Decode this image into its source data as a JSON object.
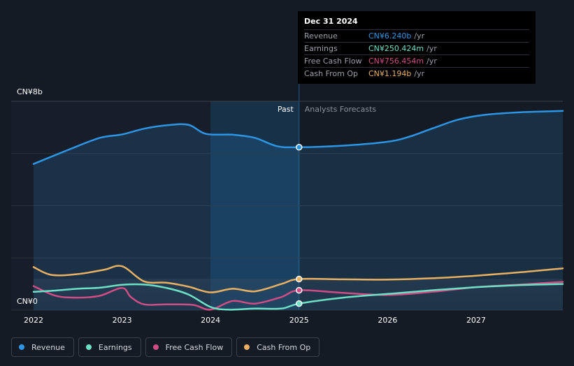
{
  "colors": {
    "revenue": "#2d95e3",
    "earnings": "#6ee0c6",
    "free_cash_flow": "#cf4d84",
    "cash_from_op": "#e8b062",
    "background": "#151b24",
    "past_band": "#1b4d78"
  },
  "tooltip": {
    "date": "Dec 31 2024",
    "rows": [
      {
        "label": "Revenue",
        "value": "CN¥6.240b",
        "unit": "/yr",
        "color": "#2d95e3"
      },
      {
        "label": "Earnings",
        "value": "CN¥250.424m",
        "unit": "/yr",
        "color": "#6ee0c6"
      },
      {
        "label": "Free Cash Flow",
        "value": "CN¥756.454m",
        "unit": "/yr",
        "color": "#cf4d84"
      },
      {
        "label": "Cash From Op",
        "value": "CN¥1.194b",
        "unit": "/yr",
        "color": "#e8b062"
      }
    ]
  },
  "legend": [
    {
      "label": "Revenue",
      "color": "#2d95e3"
    },
    {
      "label": "Earnings",
      "color": "#6ee0c6"
    },
    {
      "label": "Free Cash Flow",
      "color": "#cf4d84"
    },
    {
      "label": "Cash From Op",
      "color": "#e8b062"
    }
  ],
  "chart_data": {
    "type": "line",
    "title": "",
    "units": "CN¥ billions",
    "y_top_label": "CN¥8b",
    "y_bottom_label": "CN¥0",
    "ylim": [
      0,
      8
    ],
    "xlim": [
      2022.0,
      2027.98
    ],
    "x_ticks": [
      2022,
      2023,
      2024,
      2025,
      2026,
      2027
    ],
    "x_tick_labels": [
      "2022",
      "2023",
      "2024",
      "2025",
      "2026",
      "2027"
    ],
    "past_label": "Past",
    "forecast_label": "Analysts Forecasts",
    "past_highlight_range": [
      2024.0,
      2025.0
    ],
    "divider_x": 2025.0,
    "series": [
      {
        "name": "Revenue",
        "key": "revenue",
        "points": [
          [
            2022.0,
            5.6
          ],
          [
            2022.4,
            6.15
          ],
          [
            2022.75,
            6.6
          ],
          [
            2023.0,
            6.73
          ],
          [
            2023.25,
            6.95
          ],
          [
            2023.5,
            7.08
          ],
          [
            2023.75,
            7.1
          ],
          [
            2023.95,
            6.75
          ],
          [
            2024.25,
            6.72
          ],
          [
            2024.5,
            6.6
          ],
          [
            2024.75,
            6.28
          ],
          [
            2025.0,
            6.24
          ],
          [
            2025.5,
            6.3
          ],
          [
            2026.0,
            6.45
          ],
          [
            2026.25,
            6.65
          ],
          [
            2026.5,
            6.95
          ],
          [
            2026.8,
            7.3
          ],
          [
            2027.1,
            7.48
          ],
          [
            2027.5,
            7.58
          ],
          [
            2027.98,
            7.63
          ]
        ]
      },
      {
        "name": "Earnings",
        "key": "earnings",
        "points": [
          [
            2022.0,
            0.7
          ],
          [
            2022.25,
            0.75
          ],
          [
            2022.5,
            0.82
          ],
          [
            2022.75,
            0.86
          ],
          [
            2023.0,
            0.97
          ],
          [
            2023.25,
            0.98
          ],
          [
            2023.5,
            0.85
          ],
          [
            2023.75,
            0.6
          ],
          [
            2024.0,
            0.12
          ],
          [
            2024.2,
            0.02
          ],
          [
            2024.5,
            0.06
          ],
          [
            2024.8,
            0.06
          ],
          [
            2025.0,
            0.25
          ],
          [
            2025.5,
            0.48
          ],
          [
            2026.0,
            0.62
          ],
          [
            2026.5,
            0.76
          ],
          [
            2027.0,
            0.88
          ],
          [
            2027.5,
            0.96
          ],
          [
            2027.98,
            1.0
          ]
        ]
      },
      {
        "name": "Free Cash Flow",
        "key": "free_cash_flow",
        "points": [
          [
            2022.0,
            0.92
          ],
          [
            2022.25,
            0.55
          ],
          [
            2022.5,
            0.48
          ],
          [
            2022.75,
            0.55
          ],
          [
            2023.0,
            0.85
          ],
          [
            2023.1,
            0.5
          ],
          [
            2023.25,
            0.22
          ],
          [
            2023.5,
            0.22
          ],
          [
            2023.8,
            0.2
          ],
          [
            2024.0,
            0.02
          ],
          [
            2024.25,
            0.35
          ],
          [
            2024.5,
            0.25
          ],
          [
            2024.8,
            0.5
          ],
          [
            2025.0,
            0.76
          ],
          [
            2025.5,
            0.66
          ],
          [
            2026.0,
            0.58
          ],
          [
            2026.5,
            0.7
          ],
          [
            2027.0,
            0.88
          ],
          [
            2027.5,
            0.98
          ],
          [
            2027.98,
            1.08
          ]
        ]
      },
      {
        "name": "Cash From Op",
        "key": "cash_from_op",
        "points": [
          [
            2022.0,
            1.65
          ],
          [
            2022.2,
            1.35
          ],
          [
            2022.5,
            1.38
          ],
          [
            2022.8,
            1.55
          ],
          [
            2023.0,
            1.68
          ],
          [
            2023.25,
            1.1
          ],
          [
            2023.5,
            1.05
          ],
          [
            2023.75,
            0.9
          ],
          [
            2024.0,
            0.68
          ],
          [
            2024.25,
            0.82
          ],
          [
            2024.5,
            0.72
          ],
          [
            2024.8,
            1.0
          ],
          [
            2025.0,
            1.19
          ],
          [
            2025.5,
            1.18
          ],
          [
            2026.0,
            1.17
          ],
          [
            2026.5,
            1.22
          ],
          [
            2027.0,
            1.32
          ],
          [
            2027.5,
            1.45
          ],
          [
            2027.98,
            1.6
          ]
        ]
      }
    ],
    "highlight_x": 2025.0,
    "highlight_values": {
      "revenue": 6.24,
      "earnings": 0.25,
      "free_cash_flow": 0.76,
      "cash_from_op": 1.19
    }
  }
}
